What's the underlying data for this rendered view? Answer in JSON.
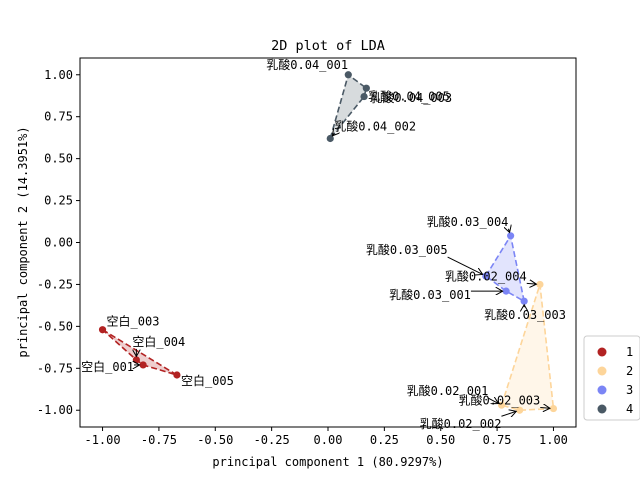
{
  "chart_data": {
    "type": "scatter",
    "title": "2D plot of LDA",
    "xlabel": "principal component 1 (80.9297%)",
    "ylabel": "principal component 2 (14.3951%)",
    "xlim": [
      -1.1,
      1.1
    ],
    "ylim": [
      -1.1,
      1.1
    ],
    "xticks": [
      -1.0,
      -0.75,
      -0.5,
      -0.25,
      0.0,
      0.25,
      0.5,
      0.75,
      1.0
    ],
    "xtick_labels": [
      "-1.00",
      "-0.75",
      "-0.50",
      "-0.25",
      "0.00",
      "0.25",
      "0.50",
      "0.75",
      "1.00"
    ],
    "yticks": [
      -1.0,
      -0.75,
      -0.5,
      -0.25,
      0.0,
      0.25,
      0.5,
      0.75,
      1.0
    ],
    "ytick_labels": [
      "-1.00",
      "-0.75",
      "-0.50",
      "-0.25",
      "0.00",
      "0.25",
      "0.50",
      "0.75",
      "1.00"
    ],
    "grid": false,
    "legend_position": "outside-right-bottom",
    "series": [
      {
        "name": "1",
        "color": "#b22222",
        "points": [
          {
            "label": "空白_001",
            "x": -0.82,
            "y": -0.73
          },
          {
            "label": "空白_003",
            "x": -1.0,
            "y": -0.52
          },
          {
            "label": "空白_004",
            "x": -0.85,
            "y": -0.7
          },
          {
            "label": "空白_005",
            "x": -0.67,
            "y": -0.79
          }
        ]
      },
      {
        "name": "2",
        "color": "#fdd59a",
        "points": [
          {
            "label": "乳酸0.02_001",
            "x": 0.77,
            "y": -0.97
          },
          {
            "label": "乳酸0.02_002",
            "x": 0.85,
            "y": -1.0
          },
          {
            "label": "乳酸0.02_003",
            "x": 1.0,
            "y": -0.99
          },
          {
            "label": "乳酸0.02_004",
            "x": 0.94,
            "y": -0.25
          }
        ]
      },
      {
        "name": "3",
        "color": "#7b85f5",
        "points": [
          {
            "label": "乳酸0.03_001",
            "x": 0.79,
            "y": -0.29
          },
          {
            "label": "乳酸0.03_003",
            "x": 0.87,
            "y": -0.35
          },
          {
            "label": "乳酸0.03_004",
            "x": 0.81,
            "y": 0.04
          },
          {
            "label": "乳酸0.03_005",
            "x": 0.7,
            "y": -0.2
          }
        ]
      },
      {
        "name": "4",
        "color": "#4a5965",
        "points": [
          {
            "label": "乳酸0.04_001",
            "x": 0.09,
            "y": 1.0
          },
          {
            "label": "乳酸0.04_002",
            "x": 0.01,
            "y": 0.62
          },
          {
            "label": "乳酸0.04_003",
            "x": 0.17,
            "y": 0.92
          },
          {
            "label": "乳酸0.04_005",
            "x": 0.16,
            "y": 0.87
          }
        ]
      }
    ]
  }
}
